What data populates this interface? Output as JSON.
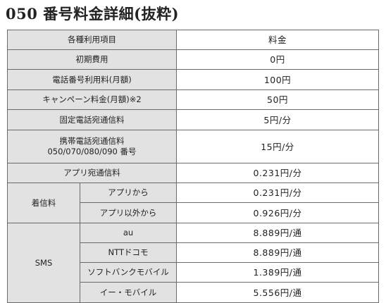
{
  "title": "050 番号料金詳細(抜粋)",
  "table": {
    "header": {
      "item": "各種利用項目",
      "fee": "料金"
    },
    "rows": [
      {
        "item": "初期費用",
        "fee": "0円"
      },
      {
        "item": "電話番号利用料(月額)",
        "fee": "100円"
      },
      {
        "item": "キャンペーン料金(月額)※2",
        "fee": "50円"
      },
      {
        "item": "固定電話宛通信料",
        "fee": "5円/分"
      },
      {
        "item_line1": "携帯電話宛通信料",
        "item_line2": "050/070/080/090 番号",
        "fee": "15円/分"
      },
      {
        "item": "アプリ宛通信料",
        "fee": "0.231円/分"
      }
    ],
    "incoming": {
      "label": "着信料",
      "rows": [
        {
          "item": "アプリから",
          "fee": "0.231円/分"
        },
        {
          "item": "アプリ以外から",
          "fee": "0.926円/分"
        }
      ]
    },
    "sms": {
      "label": "SMS",
      "rows": [
        {
          "item": "au",
          "fee": "8.889円/通"
        },
        {
          "item": "NTTドコモ",
          "fee": "8.889円/通"
        },
        {
          "item": "ソフトバンクモバイル",
          "fee": "1.389円/通"
        },
        {
          "item": "イー・モバイル",
          "fee": "5.556円/通"
        }
      ]
    }
  }
}
